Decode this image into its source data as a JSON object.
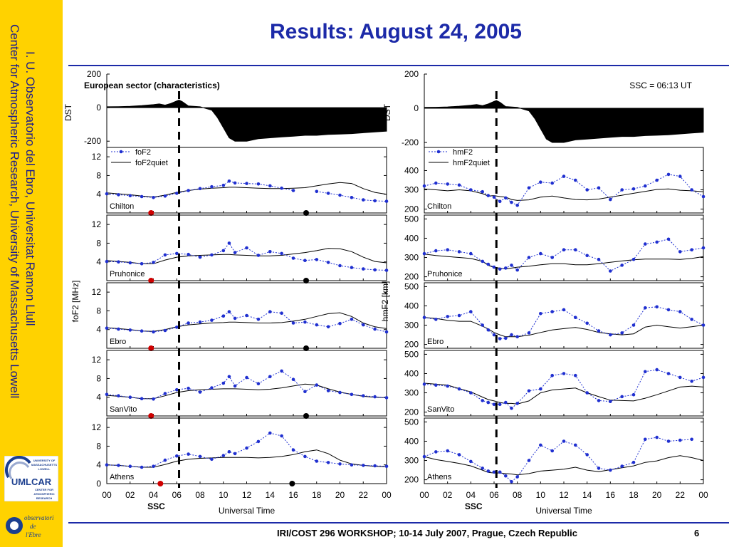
{
  "slide": {
    "title": "Results: August 24, 2005",
    "footer": "IRI/COST 296 WORKSHOP; 10-14 July 2007, Prague, Czech Republic",
    "page_number": "6",
    "sidebar_line1": "I. U. Observatorio del Ebro, Universitat Ramon Llull",
    "sidebar_line2": "Center for Atmospheric Research, University of Massachusetts Lowell",
    "logo1_lines": [
      "UNIVERSITY OF",
      "MASSACHUSETTS",
      "LOWELL",
      "UMLCAR",
      "CENTER FOR",
      "ATMOSPHERIC",
      "RESEARCH"
    ],
    "logo2_lines": [
      "observatori",
      "de",
      "l'Ebre"
    ]
  },
  "chart_data": [
    {
      "type": "line",
      "title": "European sector (characteristics)",
      "xlabel": "Universal Time",
      "ylabel": "foF2 [MHz]",
      "x_ticks": [
        "00",
        "02",
        "04",
        "06",
        "08",
        "10",
        "12",
        "14",
        "16",
        "18",
        "20",
        "22",
        "00"
      ],
      "xlim": [
        0,
        24
      ],
      "ssc_label": "SSC",
      "ssc_time": 6.2,
      "dst": {
        "ylabel": "DST",
        "ylim": [
          -250,
          200
        ],
        "yticks": [
          "200",
          "0",
          "-200"
        ],
        "x": [
          0,
          1,
          2,
          3,
          4,
          4.5,
          5,
          5.5,
          6,
          6.2,
          6.5,
          7,
          8,
          9,
          9.5,
          10,
          10.5,
          11,
          12,
          13,
          14,
          15,
          16,
          17,
          18,
          19,
          20,
          21,
          22,
          23,
          24
        ],
        "values": [
          5,
          6,
          8,
          12,
          18,
          22,
          15,
          25,
          40,
          45,
          35,
          10,
          5,
          -15,
          -60,
          -120,
          -180,
          -200,
          -200,
          -185,
          -180,
          -175,
          -170,
          -165,
          -165,
          -160,
          -158,
          -155,
          -150,
          -145,
          -140
        ]
      },
      "legend": [
        "foF2",
        "foF2quiet"
      ],
      "ylim": [
        0,
        14
      ],
      "yticks": [
        "12",
        "8",
        "4"
      ],
      "bottom_ytick": "0",
      "panels": [
        {
          "station": "Chilton",
          "sunrise": 3.8,
          "sunset": 17.1,
          "x": [
            0,
            1,
            2,
            3,
            4,
            5,
            6,
            7,
            8,
            9,
            10,
            10.5,
            11,
            12,
            13,
            14,
            15,
            16,
            17,
            18,
            19,
            20,
            21,
            22,
            23,
            24
          ],
          "foF2": [
            4.1,
            3.9,
            3.7,
            3.5,
            3.3,
            3.6,
            4.2,
            4.8,
            5.2,
            5.6,
            5.9,
            6.8,
            6.4,
            6.3,
            6.2,
            5.8,
            5.3,
            4.8,
            null,
            4.6,
            4.2,
            3.8,
            3.3,
            2.8,
            2.6,
            2.5
          ],
          "foF2quiet": [
            4.3,
            4.1,
            3.9,
            3.6,
            3.4,
            3.8,
            4.4,
            4.8,
            5.1,
            5.3,
            5.4,
            5.5,
            5.5,
            5.4,
            5.3,
            5.2,
            5.2,
            5.3,
            5.4,
            5.8,
            6.2,
            6.5,
            6.3,
            5.2,
            4.4,
            4.0
          ]
        },
        {
          "station": "Pruhonice",
          "sunrise": 3.8,
          "sunset": 17.1,
          "x": [
            0,
            1,
            2,
            3,
            4,
            5,
            6,
            7,
            8,
            9,
            10,
            10.5,
            11,
            12,
            13,
            14,
            15,
            16,
            17,
            18,
            19,
            20,
            21,
            22,
            23,
            24
          ],
          "foF2": [
            4.1,
            4.0,
            3.8,
            3.6,
            3.9,
            5.5,
            5.8,
            5.6,
            5.0,
            5.5,
            6.4,
            8.0,
            6.0,
            7.0,
            5.4,
            6.2,
            5.8,
            4.8,
            4.3,
            4.5,
            3.9,
            3.2,
            2.8,
            2.5,
            2.3,
            2.2
          ],
          "foF2quiet": [
            4.3,
            4.1,
            3.9,
            3.6,
            3.6,
            4.4,
            5.0,
            5.3,
            5.4,
            5.5,
            5.6,
            5.6,
            5.5,
            5.4,
            5.3,
            5.3,
            5.4,
            5.7,
            6.0,
            6.4,
            6.9,
            6.8,
            6.2,
            5.0,
            4.1,
            3.8
          ]
        },
        {
          "station": "Ebro",
          "sunrise": 3.8,
          "sunset": 17.1,
          "x": [
            0,
            1,
            2,
            3,
            4,
            5,
            6,
            7,
            8,
            9,
            10,
            10.5,
            11,
            12,
            13,
            14,
            15,
            16,
            17,
            18,
            19,
            20,
            21,
            22,
            23,
            24
          ],
          "foF2": [
            4.3,
            4.1,
            3.9,
            3.7,
            3.5,
            3.8,
            4.5,
            5.4,
            5.6,
            6.0,
            6.9,
            7.8,
            6.4,
            7.0,
            6.2,
            7.8,
            7.5,
            5.4,
            5.6,
            5.0,
            4.6,
            5.3,
            6.2,
            5.0,
            4.1,
            3.5
          ],
          "foF2quiet": [
            4.4,
            4.2,
            4.0,
            3.7,
            3.6,
            4.0,
            4.6,
            5.0,
            5.2,
            5.4,
            5.5,
            5.6,
            5.6,
            5.5,
            5.4,
            5.4,
            5.5,
            5.8,
            6.2,
            6.8,
            7.4,
            7.6,
            6.8,
            5.4,
            4.6,
            4.2
          ]
        },
        {
          "station": "SanVito",
          "sunrise": 3.8,
          "sunset": 17.1,
          "x": [
            0,
            1,
            2,
            3,
            4,
            5,
            6,
            7,
            8,
            9,
            10,
            10.5,
            11,
            12,
            13,
            14,
            15,
            16,
            17,
            18,
            19,
            20,
            21,
            22,
            23,
            24
          ],
          "foF2": [
            4.6,
            4.3,
            4.0,
            3.7,
            3.6,
            4.8,
            5.6,
            5.9,
            5.1,
            6.0,
            7.0,
            8.4,
            6.4,
            8.2,
            6.9,
            8.4,
            9.6,
            7.8,
            5.2,
            6.6,
            5.4,
            5.0,
            4.6,
            4.3,
            4.1,
            3.9
          ],
          "foF2quiet": [
            4.4,
            4.2,
            4.0,
            3.7,
            3.7,
            4.3,
            5.0,
            5.4,
            5.6,
            5.7,
            5.8,
            5.8,
            5.8,
            5.7,
            5.6,
            5.7,
            6.0,
            6.4,
            6.8,
            6.6,
            5.8,
            5.1,
            4.6,
            4.2,
            4.0,
            3.9
          ]
        },
        {
          "station": "Athens",
          "sunrise": 4.6,
          "sunset": 15.9,
          "x": [
            0,
            1,
            2,
            3,
            4,
            5,
            6,
            7,
            8,
            9,
            10,
            10.5,
            11,
            12,
            13,
            14,
            15,
            16,
            17,
            18,
            19,
            20,
            21,
            22,
            23,
            24
          ],
          "foF2": [
            4.0,
            3.9,
            3.7,
            3.5,
            3.7,
            5.0,
            5.9,
            6.3,
            5.8,
            5.2,
            6.0,
            6.8,
            6.4,
            7.6,
            9.0,
            10.8,
            10.2,
            7.2,
            5.8,
            4.8,
            4.5,
            4.2,
            4.0,
            3.9,
            3.8,
            3.7
          ],
          "foF2quiet": [
            4.0,
            3.9,
            3.7,
            3.5,
            3.5,
            4.1,
            4.8,
            5.2,
            5.4,
            5.5,
            5.6,
            5.6,
            5.6,
            5.6,
            5.5,
            5.6,
            5.8,
            6.2,
            6.8,
            7.2,
            6.4,
            5.0,
            4.2,
            3.9,
            3.7,
            3.6
          ]
        }
      ]
    },
    {
      "type": "line",
      "title": "SSC = 06:13 UT",
      "xlabel": "Universal Time",
      "ylabel": "hmF2 [km]",
      "x_ticks": [
        "00",
        "02",
        "04",
        "06",
        "08",
        "10",
        "12",
        "14",
        "16",
        "18",
        "20",
        "22",
        "00"
      ],
      "xlim": [
        0,
        24
      ],
      "ssc_label": "SSC",
      "ssc_time": 6.2,
      "dst": {
        "ylabel": "DST",
        "ylim": [
          -250,
          200
        ],
        "yticks": [
          "200",
          "0",
          "-200"
        ],
        "x": [
          0,
          1,
          2,
          3,
          4,
          4.5,
          5,
          5.5,
          6,
          6.2,
          6.5,
          7,
          8,
          9,
          9.5,
          10,
          10.5,
          11,
          12,
          13,
          14,
          15,
          16,
          17,
          18,
          19,
          20,
          21,
          22,
          23,
          24
        ],
        "values": [
          5,
          6,
          8,
          12,
          18,
          22,
          15,
          25,
          40,
          45,
          35,
          10,
          5,
          -15,
          -60,
          -120,
          -180,
          -200,
          -200,
          -185,
          -180,
          -175,
          -170,
          -165,
          -165,
          -160,
          -158,
          -155,
          -150,
          -145,
          -140
        ]
      },
      "legend": [
        "hmF2",
        "hmF2quiet"
      ],
      "ylim": [
        180,
        520
      ],
      "yticks": [
        "500",
        "400",
        "300",
        "200"
      ],
      "first_panel_yticks": [
        "400",
        "300",
        "200"
      ],
      "panels": [
        {
          "station": "Chilton",
          "x": [
            0,
            1,
            2,
            3,
            4,
            5,
            5.5,
            6,
            6.5,
            7,
            7.5,
            8,
            9,
            10,
            11,
            12,
            13,
            14,
            15,
            16,
            17,
            18,
            19,
            20,
            21,
            22,
            23,
            24
          ],
          "hmF2": [
            320,
            335,
            330,
            325,
            300,
            290,
            270,
            262,
            240,
            258,
            235,
            220,
            310,
            340,
            335,
            370,
            350,
            300,
            310,
            250,
            300,
            305,
            320,
            350,
            380,
            370,
            300,
            265
          ],
          "hmF2quiet": [
            305,
            300,
            295,
            300,
            295,
            280,
            268,
            270,
            265,
            262,
            250,
            245,
            248,
            262,
            268,
            258,
            250,
            248,
            252,
            262,
            272,
            282,
            292,
            302,
            305,
            298,
            295,
            290
          ]
        },
        {
          "station": "Pruhonice",
          "x": [
            0,
            1,
            2,
            3,
            4,
            5,
            5.5,
            6,
            6.5,
            7,
            7.5,
            8,
            9,
            10,
            11,
            12,
            13,
            14,
            15,
            16,
            17,
            18,
            19,
            20,
            21,
            22,
            23,
            24
          ],
          "hmF2": [
            320,
            335,
            340,
            330,
            320,
            280,
            265,
            250,
            240,
            245,
            260,
            235,
            300,
            320,
            300,
            340,
            340,
            310,
            290,
            230,
            260,
            290,
            370,
            380,
            395,
            330,
            340,
            350
          ],
          "hmF2quiet": [
            318,
            310,
            305,
            300,
            295,
            280,
            260,
            248,
            245,
            240,
            245,
            250,
            255,
            262,
            268,
            268,
            262,
            262,
            268,
            275,
            282,
            288,
            292,
            292,
            292,
            290,
            295,
            305
          ]
        },
        {
          "station": "Ebro",
          "x": [
            0,
            1,
            2,
            3,
            4,
            5,
            5.5,
            6,
            6.5,
            7,
            7.5,
            8,
            9,
            10,
            11,
            12,
            13,
            14,
            15,
            16,
            17,
            18,
            19,
            20,
            21,
            22,
            23,
            24
          ],
          "hmF2": [
            340,
            330,
            345,
            350,
            370,
            300,
            275,
            250,
            230,
            232,
            250,
            240,
            260,
            360,
            370,
            380,
            340,
            310,
            270,
            250,
            260,
            300,
            390,
            395,
            380,
            370,
            330,
            300
          ],
          "hmF2quiet": [
            340,
            335,
            325,
            320,
            320,
            295,
            280,
            262,
            250,
            240,
            240,
            240,
            248,
            262,
            275,
            282,
            288,
            278,
            262,
            255,
            250,
            255,
            290,
            300,
            292,
            285,
            292,
            300
          ]
        },
        {
          "station": "SanVito",
          "x": [
            0,
            1,
            2,
            3,
            4,
            5,
            5.5,
            6,
            6.5,
            7,
            7.5,
            8,
            9,
            10,
            11,
            12,
            13,
            14,
            15,
            16,
            17,
            18,
            19,
            20,
            21,
            22,
            23,
            24
          ],
          "hmF2": [
            345,
            340,
            335,
            320,
            300,
            260,
            250,
            240,
            240,
            250,
            220,
            245,
            310,
            320,
            390,
            400,
            390,
            300,
            260,
            255,
            280,
            290,
            410,
            420,
            400,
            380,
            360,
            380
          ],
          "hmF2quiet": [
            350,
            345,
            340,
            322,
            305,
            278,
            265,
            258,
            250,
            245,
            245,
            242,
            258,
            300,
            315,
            320,
            325,
            300,
            280,
            262,
            260,
            258,
            272,
            290,
            310,
            330,
            335,
            330
          ]
        },
        {
          "station": "Athens",
          "x": [
            0,
            1,
            2,
            3,
            4,
            5,
            5.5,
            6,
            6.5,
            7,
            7.5,
            8,
            9,
            10,
            11,
            12,
            13,
            14,
            15,
            16,
            17,
            18,
            19,
            20,
            21,
            22,
            23,
            24
          ],
          "hmF2": [
            320,
            345,
            350,
            330,
            295,
            260,
            245,
            240,
            240,
            220,
            190,
            215,
            300,
            380,
            350,
            400,
            380,
            330,
            260,
            250,
            270,
            290,
            410,
            420,
            400,
            405,
            410,
            null
          ],
          "hmF2quiet": [
            320,
            305,
            295,
            285,
            272,
            250,
            238,
            235,
            235,
            232,
            230,
            225,
            232,
            245,
            250,
            255,
            265,
            250,
            242,
            252,
            262,
            272,
            290,
            298,
            315,
            325,
            315,
            300
          ]
        }
      ]
    }
  ]
}
